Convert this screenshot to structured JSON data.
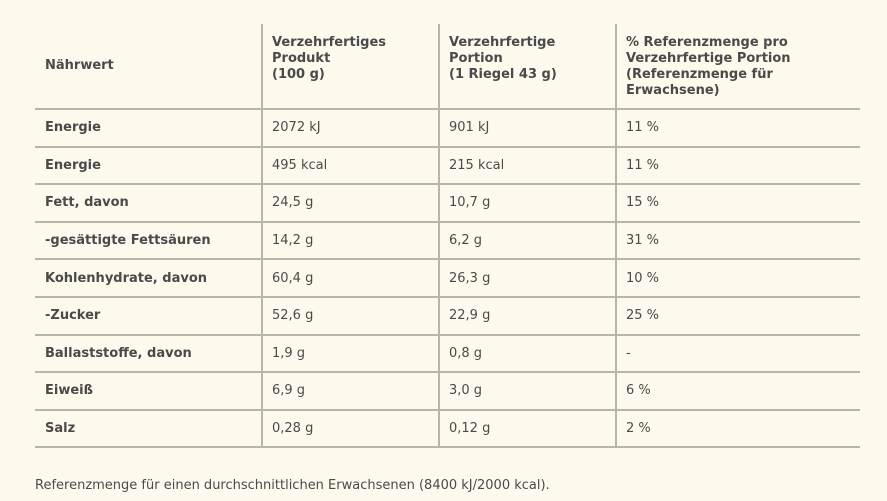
{
  "table": {
    "headers": [
      "Nährwert",
      "Verzehrfertiges\nProdukt\n(100 g)",
      "Verzehrfertige\nPortion\n(1 Riegel 43 g)",
      "% Referenzmenge pro\nVerzehrfertige Portion\n(Referenzmenge für\nErwachsene)"
    ],
    "rows": [
      [
        "Energie",
        "2072 kJ",
        "901 kJ",
        "11 %"
      ],
      [
        "Energie",
        "495 kcal",
        "215 kcal",
        "11 %"
      ],
      [
        "Fett, davon",
        "24,5 g",
        "10,7 g",
        "15 %"
      ],
      [
        "-gesättigte Fettsäuren",
        "14,2 g",
        "6,2 g",
        "31 %"
      ],
      [
        "Kohlenhydrate, davon",
        "60,4 g",
        "26,3 g",
        "10 %"
      ],
      [
        "-Zucker",
        "52,6 g",
        "22,9 g",
        "25 %"
      ],
      [
        "Ballaststoffe, davon",
        "1,9 g",
        "0,8 g",
        "-"
      ],
      [
        "Eiweiß",
        "6,9 g",
        "3,0 g",
        "6 %"
      ],
      [
        "Salz",
        "0,28 g",
        "0,12 g",
        "2 %"
      ]
    ]
  },
  "footnote": "Referenzmenge für einen durchschnittlichen Erwachsenen (8400 kJ/2000 kcal)."
}
